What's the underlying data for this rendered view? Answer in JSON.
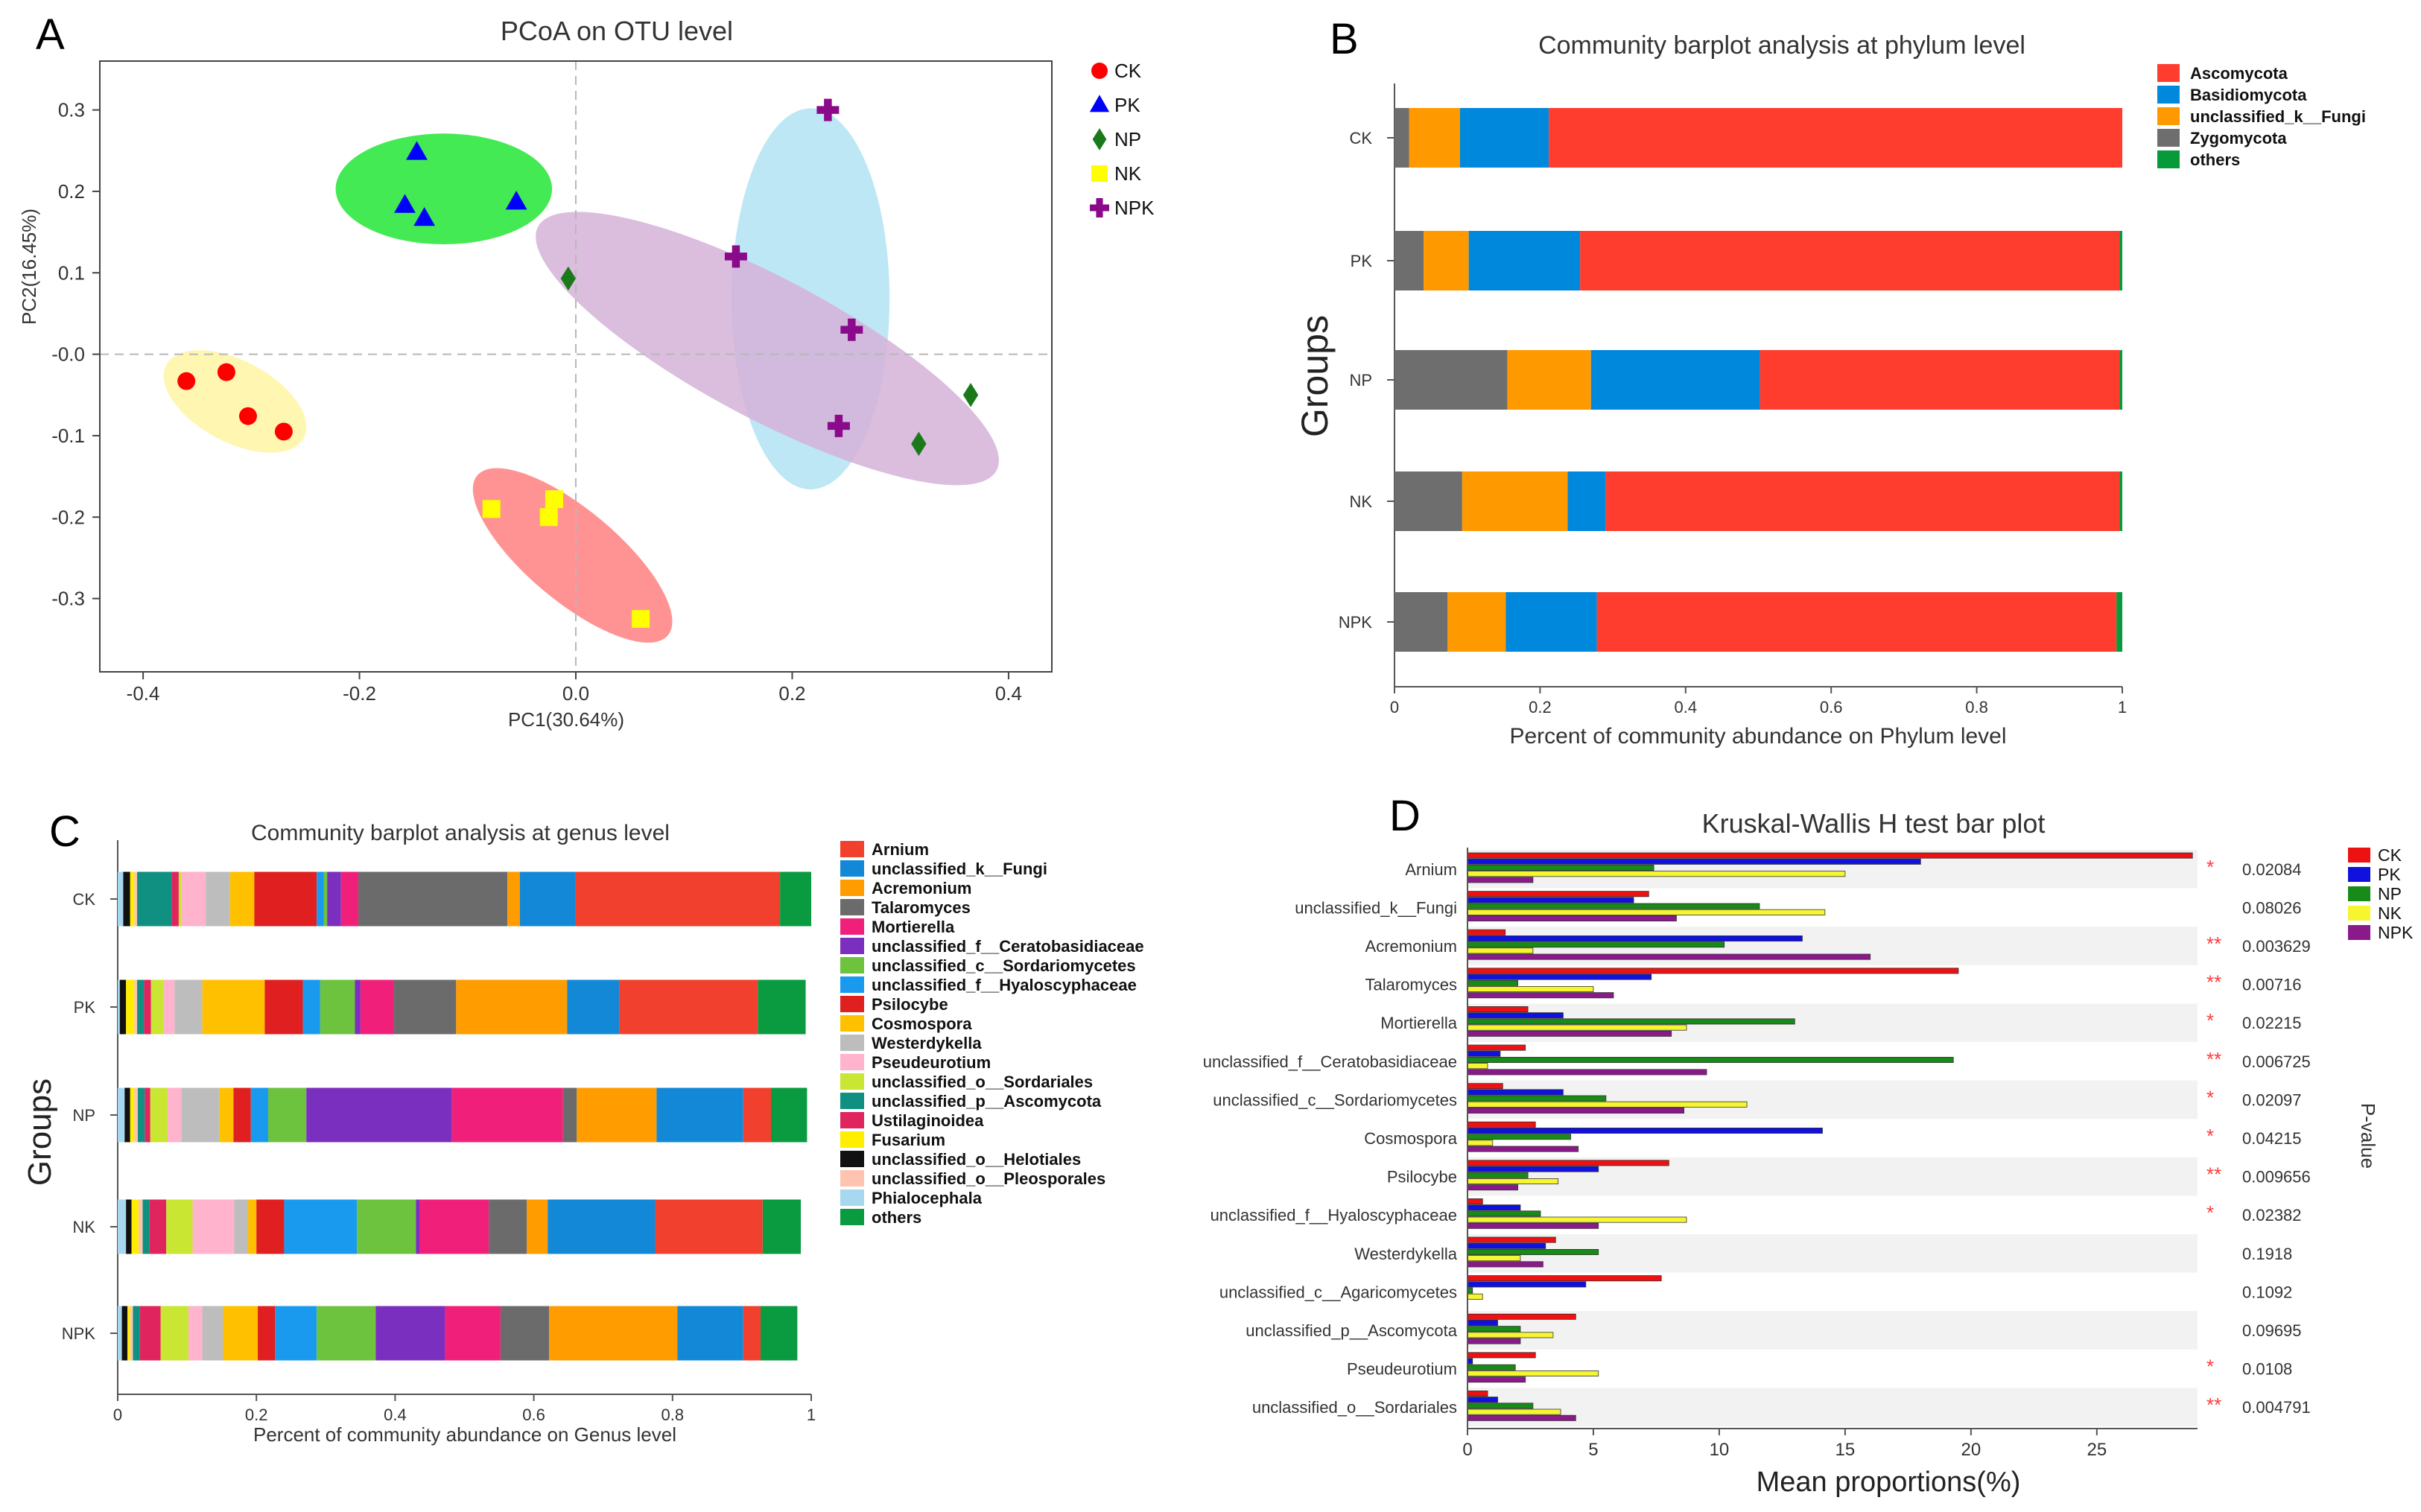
{
  "colors": {
    "CK": "#ff0000",
    "PK": "#0000ff",
    "NP": "#1a7a1a",
    "NK": "#ffff00",
    "NPK": "#8b0a8b"
  },
  "panels": {
    "A": {
      "letter": "A"
    },
    "B": {
      "letter": "B"
    },
    "C": {
      "letter": "C"
    },
    "D": {
      "letter": "D"
    }
  },
  "chart_data": [
    {
      "id": "A",
      "type": "scatter",
      "title": "PCoA on OTU level",
      "xlabel": "PC1(30.64%)",
      "ylabel": "PC2(16.45%)",
      "xlim": [
        -0.44,
        0.44
      ],
      "ylim": [
        -0.39,
        0.36
      ],
      "xticks": [
        -0.4,
        -0.2,
        0.0,
        0.2,
        0.4
      ],
      "xtick_labels": [
        "-0.4",
        "-0.2",
        "0.0",
        "0.2",
        "0.4"
      ],
      "yticks": [
        0.3,
        0.2,
        0.1,
        0.0,
        -0.1,
        -0.2,
        -0.3
      ],
      "ytick_labels": [
        "0.3",
        "0.2",
        "0.1",
        "-0.0",
        "-0.1",
        "-0.2",
        "-0.3"
      ],
      "legend": [
        "CK",
        "PK",
        "NP",
        "NK",
        "NPK"
      ],
      "series": [
        {
          "name": "CK",
          "marker": "circle",
          "points": [
            [
              -0.36,
              -0.033
            ],
            [
              -0.323,
              -0.022
            ],
            [
              -0.303,
              -0.076
            ],
            [
              -0.27,
              -0.095
            ]
          ]
        },
        {
          "name": "PK",
          "marker": "triangle",
          "points": [
            [
              -0.147,
              0.248
            ],
            [
              -0.158,
              0.183
            ],
            [
              -0.14,
              0.167
            ],
            [
              -0.055,
              0.187
            ]
          ]
        },
        {
          "name": "NP",
          "marker": "diamond",
          "points": [
            [
              -0.007,
              0.093
            ],
            [
              0.365,
              -0.05
            ],
            [
              0.317,
              -0.11
            ]
          ]
        },
        {
          "name": "NK",
          "marker": "square",
          "points": [
            [
              -0.078,
              -0.19
            ],
            [
              -0.02,
              -0.178
            ],
            [
              -0.025,
              -0.2
            ],
            [
              0.06,
              -0.325
            ]
          ]
        },
        {
          "name": "NPK",
          "marker": "plus",
          "points": [
            [
              0.233,
              0.3
            ],
            [
              0.148,
              0.12
            ],
            [
              0.255,
              0.03
            ],
            [
              0.243,
              -0.088
            ]
          ]
        }
      ],
      "ellipses": [
        {
          "group": "CK",
          "color": "#fff4a3",
          "cx": -0.315,
          "cy": -0.058,
          "rx": 0.072,
          "ry": 0.05,
          "angle": 28
        },
        {
          "group": "PK",
          "color": "#22e635",
          "cx": -0.122,
          "cy": 0.203,
          "rx": 0.1,
          "ry": 0.068,
          "angle": 0
        },
        {
          "group": "NPK",
          "color": "#b3e3f5",
          "cx": 0.217,
          "cy": 0.068,
          "rx": 0.073,
          "ry": 0.234,
          "angle": 0
        },
        {
          "group": "NP",
          "color": "#d5b2d8",
          "cx": 0.177,
          "cy": 0.007,
          "rx": 0.24,
          "ry": 0.086,
          "angle": 28
        },
        {
          "group": "NK",
          "color": "#ff8080",
          "cx": -0.003,
          "cy": -0.247,
          "rx": 0.115,
          "ry": 0.056,
          "angle": 40
        }
      ]
    },
    {
      "id": "B",
      "type": "bar",
      "orientation": "horizontal",
      "stacked": true,
      "title": "Community barplot analysis at phylum level",
      "xlabel": "Percent of community abundance on Phylum level",
      "ylabel": "Groups",
      "xlim": [
        0,
        1
      ],
      "xticks": [
        0,
        0.2,
        0.4,
        0.6,
        0.8,
        1
      ],
      "xtick_labels": [
        "0",
        "0.2",
        "0.4",
        "0.6",
        "0.8",
        "1"
      ],
      "categories": [
        "CK",
        "PK",
        "NP",
        "NK",
        "NPK"
      ],
      "legend_order": [
        "Ascomycota",
        "Basidiomycota",
        "unclassified_k__Fungi",
        "Zygomycota",
        "others"
      ],
      "series": [
        {
          "name": "Zygomycota",
          "color": "#6e6e6e",
          "values": [
            0.02,
            0.04,
            0.155,
            0.093,
            0.073
          ]
        },
        {
          "name": "unclassified_k__Fungi",
          "color": "#ff9900",
          "values": [
            0.07,
            0.062,
            0.115,
            0.145,
            0.08
          ]
        },
        {
          "name": "Basidiomycota",
          "color": "#0088dd",
          "values": [
            0.122,
            0.153,
            0.232,
            0.052,
            0.125
          ]
        },
        {
          "name": "Ascomycota",
          "color": "#ff3d2e",
          "values": [
            0.788,
            0.741,
            0.494,
            0.706,
            0.714
          ]
        },
        {
          "name": "others",
          "color": "#079a3a",
          "values": [
            0.0,
            0.004,
            0.004,
            0.004,
            0.008
          ]
        }
      ]
    },
    {
      "id": "C",
      "type": "bar",
      "orientation": "horizontal",
      "stacked": true,
      "title": "Community barplot analysis at genus level",
      "xlabel": "Percent of community abundance on Genus level",
      "ylabel": "Groups",
      "xlim": [
        0,
        1
      ],
      "xticks": [
        0,
        0.2,
        0.4,
        0.6,
        0.8,
        1
      ],
      "xtick_labels": [
        "0",
        "0.2",
        "0.4",
        "0.6",
        "0.8",
        "1"
      ],
      "categories": [
        "CK",
        "PK",
        "NP",
        "NK",
        "NPK"
      ],
      "series": [
        {
          "name": "Phialocephala",
          "color": "#a8d8f0",
          "values": [
            0.008,
            0.003,
            0.01,
            0.012,
            0.006
          ]
        },
        {
          "name": "unclassified_o__Helotiales",
          "color": "#111111",
          "values": [
            0.01,
            0.009,
            0.008,
            0.008,
            0.008
          ]
        },
        {
          "name": "Fusarium",
          "color": "#ffee00",
          "values": [
            0.006,
            0.012,
            0.006,
            0.01,
            0.004
          ]
        },
        {
          "name": "unclassified_o__Pleosporales",
          "color": "#ffc4b0",
          "values": [
            0.004,
            0.004,
            0.005,
            0.006,
            0.004
          ]
        },
        {
          "name": "unclassified_p__Ascomycota",
          "color": "#0f9080",
          "values": [
            0.05,
            0.01,
            0.01,
            0.01,
            0.01
          ]
        },
        {
          "name": "Ustilaginoidea",
          "color": "#e0245e",
          "values": [
            0.01,
            0.01,
            0.008,
            0.024,
            0.03
          ]
        },
        {
          "name": "unclassified_o__Sordariales",
          "color": "#c8e632",
          "values": [
            0.004,
            0.018,
            0.025,
            0.038,
            0.04
          ]
        },
        {
          "name": "Pseudeurotium",
          "color": "#ffb3cc",
          "values": [
            0.035,
            0.016,
            0.02,
            0.06,
            0.02
          ]
        },
        {
          "name": "Westerdykella",
          "color": "#bdbdbd",
          "values": [
            0.035,
            0.04,
            0.055,
            0.02,
            0.03
          ]
        },
        {
          "name": "Cosmospora",
          "color": "#ffc000",
          "values": [
            0.035,
            0.09,
            0.02,
            0.012,
            0.05
          ]
        },
        {
          "name": "Psilocybe",
          "color": "#e02020",
          "values": [
            0.09,
            0.055,
            0.025,
            0.04,
            0.025
          ]
        },
        {
          "name": "unclassified_f__Hyaloscyphaceae",
          "color": "#1a9aee",
          "values": [
            0.01,
            0.025,
            0.025,
            0.105,
            0.06
          ]
        },
        {
          "name": "unclassified_c__Sordariomycetes",
          "color": "#6dc23e",
          "values": [
            0.005,
            0.05,
            0.055,
            0.085,
            0.085
          ]
        },
        {
          "name": "unclassified_f__Ceratobasidiaceae",
          "color": "#7b2fbe",
          "values": [
            0.02,
            0.008,
            0.21,
            0.005,
            0.1
          ]
        },
        {
          "name": "Mortierella",
          "color": "#f0207a",
          "values": [
            0.025,
            0.048,
            0.16,
            0.1,
            0.08
          ]
        },
        {
          "name": "Talaromyces",
          "color": "#6b6b6b",
          "values": [
            0.215,
            0.09,
            0.02,
            0.055,
            0.07
          ]
        },
        {
          "name": "Acremonium",
          "color": "#ff9c00",
          "values": [
            0.018,
            0.16,
            0.115,
            0.03,
            0.185
          ]
        },
        {
          "name": "unclassified_k__Fungi",
          "color": "#1288d6",
          "values": [
            0.08,
            0.075,
            0.125,
            0.155,
            0.095
          ]
        },
        {
          "name": "Arnium",
          "color": "#f2402e",
          "values": [
            0.295,
            0.2,
            0.04,
            0.155,
            0.025
          ]
        },
        {
          "name": "others",
          "color": "#0a9a40",
          "values": [
            0.045,
            0.069,
            0.052,
            0.055,
            0.053
          ]
        }
      ],
      "legend_order": [
        "Arnium",
        "unclassified_k__Fungi",
        "Acremonium",
        "Talaromyces",
        "Mortierella",
        "unclassified_f__Ceratobasidiaceae",
        "unclassified_c__Sordariomycetes",
        "unclassified_f__Hyaloscyphaceae",
        "Psilocybe",
        "Cosmospora",
        "Westerdykella",
        "Pseudeurotium",
        "unclassified_o__Sordariales",
        "unclassified_p__Ascomycota",
        "Ustilaginoidea",
        "Fusarium",
        "unclassified_o__Helotiales",
        "unclassified_o__Pleosporales",
        "Phialocephala",
        "others"
      ]
    },
    {
      "id": "D",
      "type": "bar",
      "orientation": "horizontal",
      "grouped": true,
      "title": "Kruskal-Wallis H test bar plot",
      "xlabel": "Mean proportions(%)",
      "side_label": "P-value",
      "xlim": [
        0,
        29
      ],
      "xticks": [
        0,
        5,
        10,
        15,
        20,
        25
      ],
      "xtick_labels": [
        "0",
        "5",
        "10",
        "15",
        "20",
        "25"
      ],
      "legend": [
        "CK",
        "PK",
        "NP",
        "NK",
        "NPK"
      ],
      "categories": [
        "Arnium",
        "unclassified_k__Fungi",
        "Acremonium",
        "Talaromyces",
        "Mortierella",
        "unclassified_f__Ceratobasidiaceae",
        "unclassified_c__Sordariomycetes",
        "Cosmospora",
        "Psilocybe",
        "unclassified_f__Hyaloscyphaceae",
        "Westerdykella",
        "unclassified_c__Agaricomycetes",
        "unclassified_p__Ascomycota",
        "Pseudeurotium",
        "unclassified_o__Sordariales"
      ],
      "series": [
        {
          "name": "CK",
          "values": [
            28.8,
            7.2,
            1.5,
            19.5,
            2.4,
            2.3,
            1.4,
            2.7,
            8.0,
            0.6,
            3.5,
            7.7,
            4.3,
            2.7,
            0.8
          ]
        },
        {
          "name": "PK",
          "values": [
            18.0,
            6.6,
            13.3,
            7.3,
            3.8,
            1.3,
            3.8,
            14.1,
            5.2,
            2.1,
            3.1,
            4.7,
            1.2,
            0.2,
            1.2
          ]
        },
        {
          "name": "NP",
          "values": [
            7.4,
            11.6,
            10.2,
            2.0,
            13.0,
            19.3,
            5.5,
            4.1,
            2.4,
            2.9,
            5.2,
            0.2,
            2.1,
            1.9,
            2.6
          ]
        },
        {
          "name": "NK",
          "values": [
            15.0,
            14.2,
            2.6,
            5.0,
            8.7,
            0.8,
            11.1,
            1.0,
            3.6,
            8.7,
            2.1,
            0.6,
            3.4,
            5.2,
            3.7
          ]
        },
        {
          "name": "NPK",
          "values": [
            2.6,
            8.3,
            16.0,
            5.8,
            8.1,
            9.5,
            8.6,
            4.4,
            2.0,
            5.2,
            3.0,
            0.0,
            2.1,
            2.3,
            4.3
          ]
        }
      ],
      "significance": [
        "*",
        "",
        "**",
        "**",
        "*",
        "**",
        "*",
        "*",
        "**",
        "*",
        "",
        "",
        "",
        "*",
        "**"
      ],
      "p_values": [
        "0.02084",
        "0.08026",
        "0.003629",
        "0.00716",
        "0.02215",
        "0.006725",
        "0.02097",
        "0.04215",
        "0.009656",
        "0.02382",
        "0.1918",
        "0.1092",
        "0.09695",
        "0.0108",
        "0.004791"
      ]
    }
  ]
}
